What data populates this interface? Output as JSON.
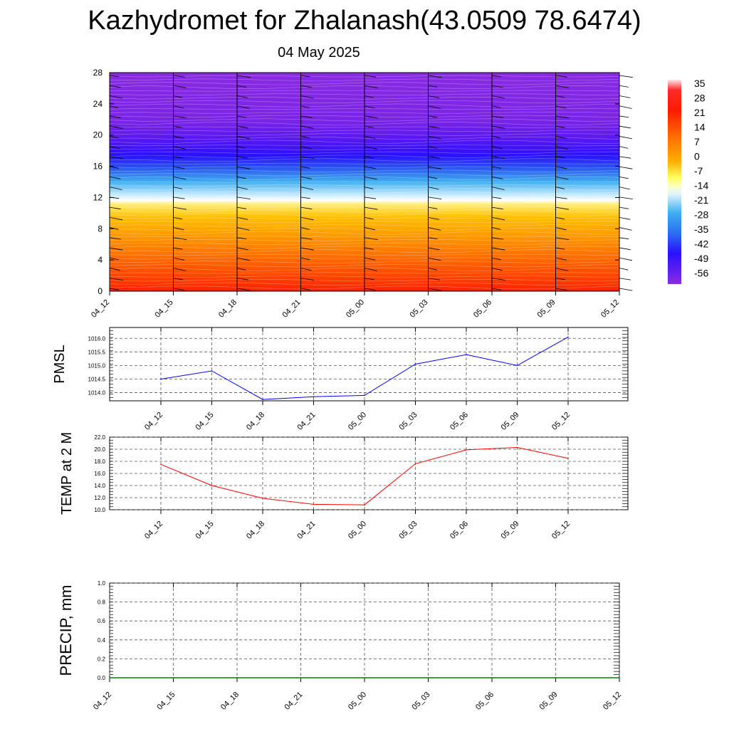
{
  "title": "Kazhydromet for Zhalanash(43.0509 78.6474)",
  "subtitle": "04 May 2025",
  "chart_data": [
    {
      "type": "heatmap",
      "ylim": [
        0,
        28
      ],
      "yticks": [
        "0",
        "4",
        "8",
        "12",
        "16",
        "20",
        "24",
        "28"
      ],
      "x": [
        "04_12",
        "04_15",
        "04_18",
        "04_21",
        "05_00",
        "05_03",
        "05_06",
        "05_09",
        "05_12"
      ],
      "colorbar_labels": [
        "35",
        "28",
        "21",
        "14",
        "7",
        "0",
        "-7",
        "-14",
        "-21",
        "-28",
        "-35",
        "-42",
        "-49",
        "-56"
      ],
      "colors": {
        "surface": "#ff2a00",
        "warm": "#ff9a00",
        "near_freezing": "#fff7a0",
        "freezing_line": "#ffffff",
        "cold": "#3fb4f0",
        "very_cold": "#2a1aff",
        "top": "#8a2be2"
      }
    },
    {
      "type": "line",
      "ylabel": "PMSL",
      "x": [
        "04_12",
        "04_15",
        "04_18",
        "04_21",
        "05_00",
        "05_03",
        "05_06",
        "05_09",
        "05_12"
      ],
      "y": [
        1014.5,
        1014.8,
        1013.75,
        1013.85,
        1013.9,
        1015.05,
        1015.4,
        1015.0,
        1016.05
      ],
      "ylim": [
        1013.7,
        1016.4
      ],
      "yticks": [
        "1014.0",
        "1014.5",
        "1015.0",
        "1015.5",
        "1016.0"
      ],
      "color": "#0000ff"
    },
    {
      "type": "line",
      "ylabel": "TEMP at 2 M",
      "x": [
        "04_12",
        "04_15",
        "04_18",
        "04_21",
        "05_00",
        "05_03",
        "05_06",
        "05_09",
        "05_12"
      ],
      "y": [
        17.5,
        14.0,
        11.9,
        10.9,
        10.8,
        17.6,
        19.9,
        20.3,
        18.5
      ],
      "ylim": [
        10.0,
        22.0
      ],
      "yticks": [
        "10.0",
        "12.0",
        "14.0",
        "16.0",
        "18.0",
        "20.0",
        "22.0"
      ],
      "color": "#ff0000"
    },
    {
      "type": "line",
      "ylabel": "PRECIP, mm",
      "x": [
        "04_12",
        "04_15",
        "04_18",
        "04_21",
        "05_00",
        "05_03",
        "05_06",
        "05_09",
        "05_12"
      ],
      "y": [
        0,
        0,
        0,
        0,
        0,
        0,
        0,
        0,
        0
      ],
      "ylim": [
        0.0,
        1.0
      ],
      "yticks": [
        "0.0",
        "0.2",
        "0.4",
        "0.6",
        "0.8",
        "1.0"
      ],
      "color": "#008000"
    }
  ]
}
